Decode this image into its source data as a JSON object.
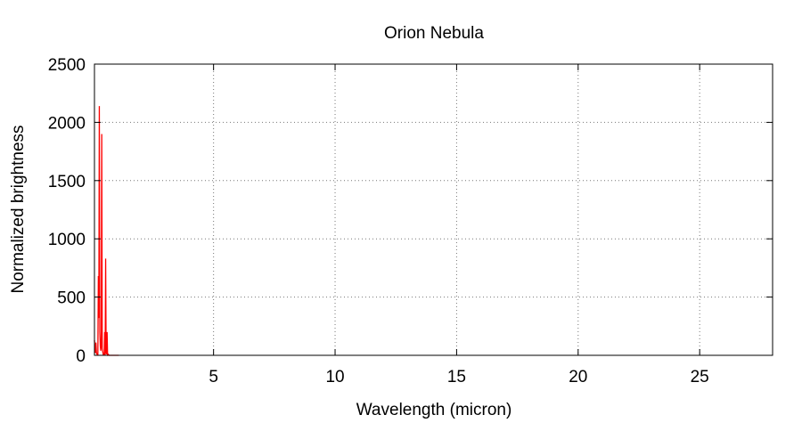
{
  "chart_data": {
    "type": "line",
    "title": "Orion Nebula",
    "xlabel": "Wavelength (micron)",
    "ylabel": "Normalized brightness",
    "xlim": [
      0.1,
      28
    ],
    "ylim": [
      0,
      2500
    ],
    "xticks": [
      5,
      10,
      15,
      20,
      25
    ],
    "yticks": [
      0,
      500,
      1000,
      1500,
      2000,
      2500
    ],
    "grid": true,
    "grid_style": "dotted",
    "legend": false,
    "series": [
      {
        "color": "#ff0000",
        "x": [
          0.1,
          0.12,
          0.14,
          0.16,
          0.18,
          0.2,
          0.22,
          0.24,
          0.26,
          0.28,
          0.3,
          0.32,
          0.34,
          0.36,
          0.38,
          0.4,
          0.42,
          0.44,
          0.46,
          0.48,
          0.5,
          0.52,
          0.54,
          0.56,
          0.58,
          0.6,
          0.62,
          0.64,
          0.66,
          0.68,
          0.7,
          0.72,
          0.74,
          0.76,
          0.78,
          0.8,
          0.82,
          0.84,
          0.86,
          0.88,
          0.9,
          0.92,
          0.94,
          0.96,
          0.98,
          1.0,
          1.02,
          1.04,
          1.06,
          1.08,
          1.1
        ],
        "y": [
          130,
          60,
          20,
          110,
          30,
          10,
          5,
          5,
          680,
          320,
          2140,
          200,
          80,
          40,
          90,
          1900,
          60,
          30,
          10,
          15,
          5,
          200,
          5,
          830,
          30,
          10,
          200,
          5,
          10,
          5,
          0,
          0,
          0,
          0,
          0,
          0,
          0,
          0,
          0,
          0,
          0,
          0,
          0,
          0,
          0,
          0,
          0,
          0,
          0,
          0,
          0
        ]
      }
    ]
  }
}
